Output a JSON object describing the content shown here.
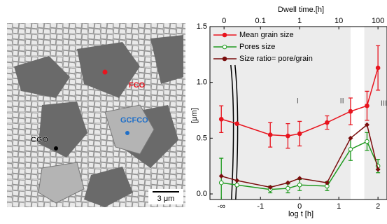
{
  "micrograph": {
    "labels": [
      {
        "text": "FCO",
        "color": "#e8141e"
      },
      {
        "text": "GCFCO",
        "color": "#1f6fc8"
      },
      {
        "text": "CGO",
        "color": "#000000"
      }
    ],
    "scale_bar": "3 μm"
  },
  "chart_data": {
    "type": "line",
    "x2_label": "Dwell time.[h]",
    "x_label": "log t [h]",
    "y_label": "[μm]",
    "xlim": [
      -2.29,
      2.23
    ],
    "ylim": [
      -0.05,
      1.5
    ],
    "xticks": [
      {
        "value": -2,
        "label": "-∞"
      },
      -1,
      0,
      1,
      2
    ],
    "x2ticks": [
      {
        "value": -1.93,
        "label": "0"
      },
      {
        "value": -1,
        "label": "0.1"
      },
      {
        "value": 0,
        "label": "1"
      },
      {
        "value": 1,
        "label": "10"
      },
      {
        "value": 2,
        "label": "100"
      }
    ],
    "yticks": [
      {
        "value": 0,
        "label": "0.0"
      },
      {
        "value": 0.5,
        "label": "0.5"
      },
      {
        "value": 1.0,
        "label": "1.0"
      },
      {
        "value": 1.5,
        "label": "1.5"
      }
    ],
    "axis_break": -1.65,
    "shaded_spans": [
      [
        -2.29,
        1.3
      ],
      [
        1.65,
        2.23
      ]
    ],
    "annotations": [
      {
        "text": "I",
        "x": -0.05,
        "y": 0.83
      },
      {
        "text": "II",
        "x": 1.08,
        "y": 0.83
      },
      {
        "text": "III",
        "x": 2.15,
        "y": 0.81
      }
    ],
    "x": [
      -2,
      -1.6,
      -0.75,
      -0.3,
      0,
      0.7,
      1.3,
      1.72,
      2.0
    ],
    "series": [
      {
        "name": "Mean grain size",
        "color": "#e8141e",
        "marker": "filled-circle",
        "values": [
          0.67,
          0.63,
          0.53,
          0.52,
          0.54,
          0.64,
          0.74,
          0.79,
          1.13
        ],
        "errors": [
          0.12,
          0,
          0.11,
          0.11,
          0.11,
          0.06,
          0.12,
          0.13,
          0.2
        ]
      },
      {
        "name": "Pores size",
        "color": "#1f9a1f",
        "marker": "open-circle",
        "values": [
          0.1,
          0.08,
          0.04,
          0.05,
          0.08,
          0.07,
          0.4,
          0.47,
          0.25
        ],
        "errors": [
          0.22,
          0,
          0.03,
          0.04,
          0.05,
          0.04,
          0.1,
          0.08,
          0.06
        ]
      },
      {
        "name": "Size ratio= pore/grain",
        "color": "#7a0e0e",
        "marker": "diamond",
        "values": [
          0.16,
          0.12,
          0.06,
          0.1,
          0.14,
          0.1,
          0.5,
          0.62,
          0.22
        ]
      }
    ]
  }
}
